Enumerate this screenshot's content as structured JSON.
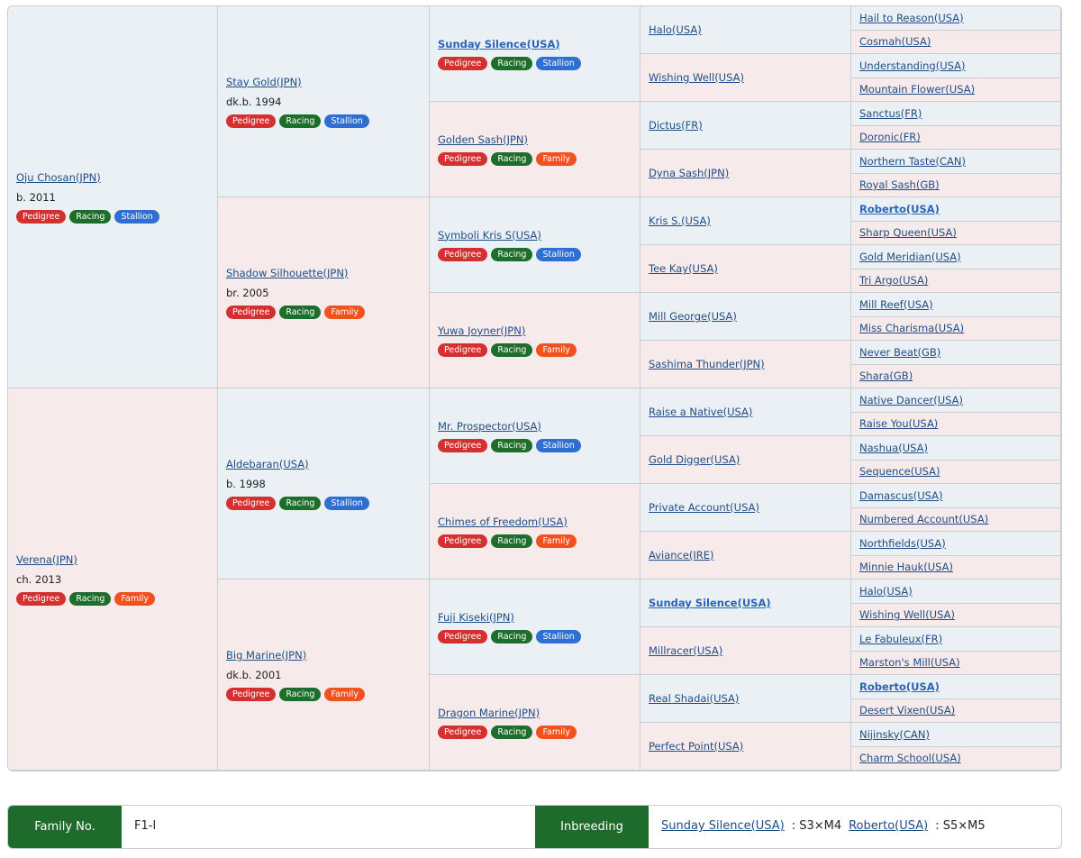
{
  "pedigree": {
    "gen1": [
      {
        "name": "Oju Chosan(JPN)",
        "year": "b. 2011",
        "badges": [
          "Pedigree",
          "Racing",
          "Stallion"
        ]
      },
      {
        "name": "Verena(JPN)",
        "year": "ch. 2013",
        "badges": [
          "Pedigree",
          "Racing",
          "Family"
        ]
      }
    ],
    "gen2": [
      {
        "name": "Stay Gold(JPN)",
        "year": "dk.b. 1994",
        "badges": [
          "Pedigree",
          "Racing",
          "Stallion"
        ]
      },
      {
        "name": "Shadow Silhouette(JPN)",
        "year": "br. 2005",
        "badges": [
          "Pedigree",
          "Racing",
          "Family"
        ]
      },
      {
        "name": "Aldebaran(USA)",
        "year": "b. 1998",
        "badges": [
          "Pedigree",
          "Racing",
          "Stallion"
        ]
      },
      {
        "name": "Big Marine(JPN)",
        "year": "dk.b. 2001",
        "badges": [
          "Pedigree",
          "Racing",
          "Family"
        ]
      }
    ],
    "gen3": [
      {
        "name": "Sunday Silence(USA)",
        "bold": true,
        "badges": [
          "Pedigree",
          "Racing",
          "Stallion"
        ]
      },
      {
        "name": "Golden Sash(JPN)",
        "badges": [
          "Pedigree",
          "Racing",
          "Family"
        ]
      },
      {
        "name": "Symboli Kris S(USA)",
        "badges": [
          "Pedigree",
          "Racing",
          "Stallion"
        ]
      },
      {
        "name": "Yuwa Joyner(JPN)",
        "badges": [
          "Pedigree",
          "Racing",
          "Family"
        ]
      },
      {
        "name": "Mr. Prospector(USA)",
        "badges": [
          "Pedigree",
          "Racing",
          "Stallion"
        ]
      },
      {
        "name": "Chimes of Freedom(USA)",
        "badges": [
          "Pedigree",
          "Racing",
          "Family"
        ]
      },
      {
        "name": "Fuji Kiseki(JPN)",
        "badges": [
          "Pedigree",
          "Racing",
          "Stallion"
        ]
      },
      {
        "name": "Dragon Marine(JPN)",
        "badges": [
          "Pedigree",
          "Racing",
          "Family"
        ]
      }
    ],
    "gen4": [
      {
        "name": "Halo(USA)"
      },
      {
        "name": "Wishing Well(USA)"
      },
      {
        "name": "Dictus(FR)"
      },
      {
        "name": "Dyna Sash(JPN)"
      },
      {
        "name": "Kris S.(USA)"
      },
      {
        "name": "Tee Kay(USA)"
      },
      {
        "name": "Mill George(USA)"
      },
      {
        "name": "Sashima Thunder(JPN)"
      },
      {
        "name": "Raise a Native(USA)"
      },
      {
        "name": "Gold Digger(USA)"
      },
      {
        "name": "Private Account(USA)"
      },
      {
        "name": "Aviance(IRE)"
      },
      {
        "name": "Sunday Silence(USA)",
        "bold": true
      },
      {
        "name": "Millracer(USA)"
      },
      {
        "name": "Real Shadai(USA)"
      },
      {
        "name": "Perfect Point(USA)"
      }
    ],
    "gen5": [
      {
        "name": "Hail to Reason(USA)"
      },
      {
        "name": "Cosmah(USA)"
      },
      {
        "name": "Understanding(USA)"
      },
      {
        "name": "Mountain Flower(USA)"
      },
      {
        "name": "Sanctus(FR)"
      },
      {
        "name": "Doronic(FR)"
      },
      {
        "name": "Northern Taste(CAN)"
      },
      {
        "name": "Royal Sash(GB)"
      },
      {
        "name": "Roberto(USA)",
        "bold": true
      },
      {
        "name": "Sharp Queen(USA)"
      },
      {
        "name": "Gold Meridian(USA)"
      },
      {
        "name": "Tri Argo(USA)"
      },
      {
        "name": "Mill Reef(USA)"
      },
      {
        "name": "Miss Charisma(USA)"
      },
      {
        "name": "Never Beat(GB)"
      },
      {
        "name": "Shara(GB)"
      },
      {
        "name": "Native Dancer(USA)"
      },
      {
        "name": "Raise You(USA)"
      },
      {
        "name": "Nashua(USA)"
      },
      {
        "name": "Sequence(USA)"
      },
      {
        "name": "Damascus(USA)"
      },
      {
        "name": "Numbered Account(USA)"
      },
      {
        "name": "Northfields(USA)"
      },
      {
        "name": "Minnie Hauk(USA)"
      },
      {
        "name": "Halo(USA)"
      },
      {
        "name": "Wishing Well(USA)"
      },
      {
        "name": "Le Fabuleux(FR)"
      },
      {
        "name": "Marston's Mill(USA)"
      },
      {
        "name": "Roberto(USA)",
        "bold": true
      },
      {
        "name": "Desert Vixen(USA)"
      },
      {
        "name": "Nijinsky(CAN)"
      },
      {
        "name": "Charm School(USA)"
      }
    ],
    "badge_colors": {
      "Pedigree": "#d3302f",
      "Racing": "#1d6e2b",
      "Stallion": "#2f6fd1",
      "Family": "#f2511f"
    }
  },
  "footer": {
    "family_label": "Family No.",
    "family_value": "F1-l",
    "inbreeding_label": "Inbreeding",
    "inbreeding": [
      {
        "name": "Sunday Silence(USA)",
        "cross": ": S3×M4"
      },
      {
        "name": "Roberto(USA)",
        "cross": ": S5×M5"
      }
    ]
  }
}
